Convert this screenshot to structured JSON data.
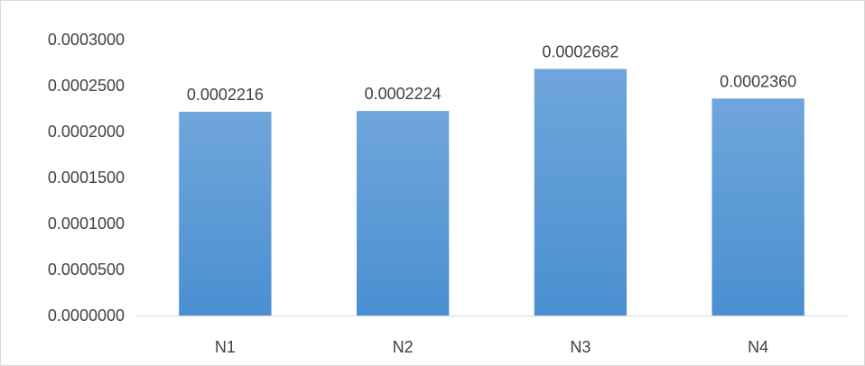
{
  "chart_data": {
    "type": "bar",
    "categories": [
      "N1",
      "N2",
      "N3",
      "N4"
    ],
    "values": [
      0.0002216,
      0.0002224,
      0.0002682,
      0.000236
    ],
    "value_labels": [
      "0.0002216",
      "0.0002224",
      "0.0002682",
      "0.0002360"
    ],
    "title": "",
    "xlabel": "",
    "ylabel": "",
    "ylim": [
      0,
      0.0003
    ],
    "yticks": [
      0,
      5e-05,
      0.0001,
      0.00015,
      0.0002,
      0.00025,
      0.0003
    ],
    "ytick_labels": [
      "0.0000000",
      "0.0000500",
      "0.0001000",
      "0.0001500",
      "0.0002000",
      "0.0002500",
      "0.0003000"
    ],
    "grid": false,
    "legend": "none",
    "colors": {
      "bar_top": "#6fa6db",
      "bar_bottom": "#4a8fd1",
      "axis": "#d9d9d9",
      "text": "#404040",
      "border": "#d9d9d9"
    }
  }
}
